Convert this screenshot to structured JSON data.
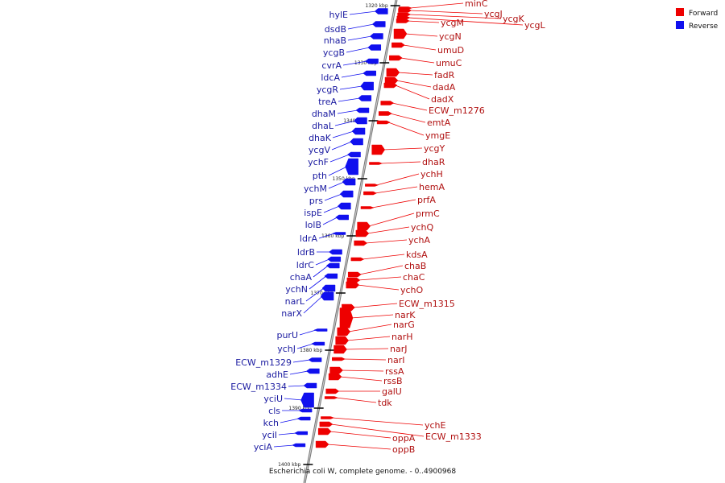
{
  "caption": "Escherichia coli W, complete genome. - 0..4900968",
  "legend": {
    "placement": "top-right",
    "items": [
      {
        "label": "Forward",
        "color": "#ee0000"
      },
      {
        "label": "Reverse",
        "color": "#1010ee"
      }
    ]
  },
  "ticks": [
    "1320 kbp",
    "1330 kbp",
    "1340 kbp",
    "1350 kbp",
    "1360 kbp",
    "1370 kbp",
    "1380 kbp",
    "1390 kbp",
    "1400 kbp"
  ],
  "reverse_genes": [
    "hylE",
    "dsdB",
    "nhaB",
    "ycgB",
    "cvrA",
    "ldcA",
    "ycgR",
    "treA",
    "dhaM",
    "dhaL",
    "dhaK",
    "ycgV",
    "ychF",
    "pth",
    "ychM",
    "prs",
    "ispE",
    "lolB",
    "ldrA",
    "ldrB",
    "ldrC",
    "chaA",
    "ychN",
    "narL",
    "narX",
    "purU",
    "ychJ",
    "ECW_m1329",
    "adhE",
    "ECW_m1334",
    "yciU",
    "cls",
    "kch",
    "yciI",
    "yciA"
  ],
  "forward_genes": [
    "minC",
    "ycgJ",
    "ycgK",
    "ycgL",
    "ycgM",
    "ycgN",
    "umuD",
    "umuC",
    "fadR",
    "dadA",
    "dadX",
    "ECW_m1276",
    "emtA",
    "ymgE",
    "ycgY",
    "dhaR",
    "ychH",
    "hemA",
    "prfA",
    "prmC",
    "ychQ",
    "ychA",
    "kdsA",
    "chaB",
    "chaC",
    "ychO",
    "ECW_m1315",
    "narK",
    "narG",
    "narH",
    "narJ",
    "narI",
    "rssA",
    "rssB",
    "galU",
    "tdk",
    "ychE",
    "ECW_m1333",
    "oppA",
    "oppB"
  ]
}
